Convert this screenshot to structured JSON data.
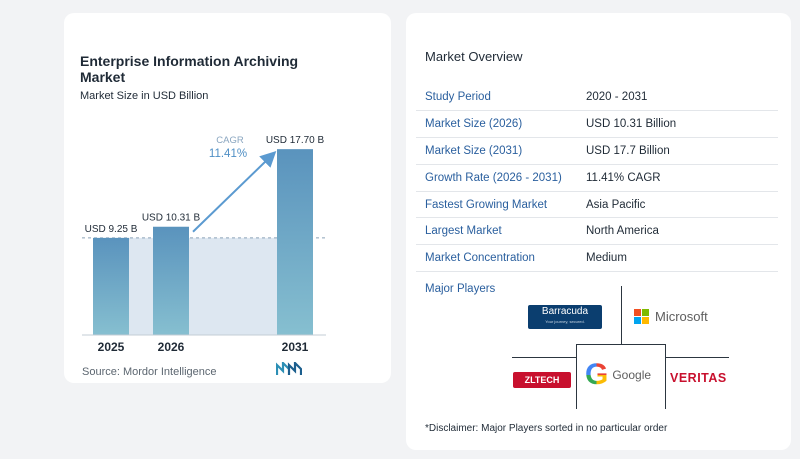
{
  "chart_data": {
    "type": "bar",
    "title": "Enterprise Information Archiving Market",
    "subtitle": "Market Size in USD Billion",
    "categories": [
      "2025",
      "2026",
      "2031"
    ],
    "values": [
      9.25,
      10.31,
      17.7
    ],
    "value_labels": [
      "USD 9.25 B",
      "USD 10.31 B",
      "USD 17.70 B"
    ],
    "annotation": {
      "label": "CAGR",
      "value": "11.41%"
    },
    "ylim": [
      0,
      18
    ],
    "reference_line_value": 9.25,
    "colors": {
      "bar_top": "#5a93bd",
      "bar_bottom": "#86bfd0",
      "band": "#dde7f1",
      "arrow": "#5b9ad0",
      "cagr_text": "#4f8fc5"
    }
  },
  "source": "Source:  Mordor Intelligence",
  "logo_icon": "mordor-intelligence-logo-icon",
  "overview": {
    "title": "Market Overview",
    "rows": [
      {
        "label": "Study Period",
        "value": "2020 - 2031"
      },
      {
        "label": "Market Size (2026)",
        "value": "USD 10.31 Billion"
      },
      {
        "label": "Market Size (2031)",
        "value": "USD 17.7 Billion"
      },
      {
        "label": "Growth Rate (2026 - 2031)",
        "value": "11.41% CAGR"
      },
      {
        "label": "Fastest Growing Market",
        "value": "Asia Pacific"
      },
      {
        "label": "Largest Market",
        "value": "North America"
      },
      {
        "label": "Market Concentration",
        "value": "Medium"
      }
    ]
  },
  "players": {
    "title": "Major Players",
    "logos": [
      {
        "name": "Barracuda",
        "tagline": "Your journey, secured."
      },
      {
        "name": "Microsoft"
      },
      {
        "name": "ZLTECH"
      },
      {
        "name": "Google",
        "mark": "G"
      },
      {
        "name": "VERITAS"
      }
    ],
    "disclaimer": "*Disclaimer: Major Players sorted in no particular order"
  }
}
